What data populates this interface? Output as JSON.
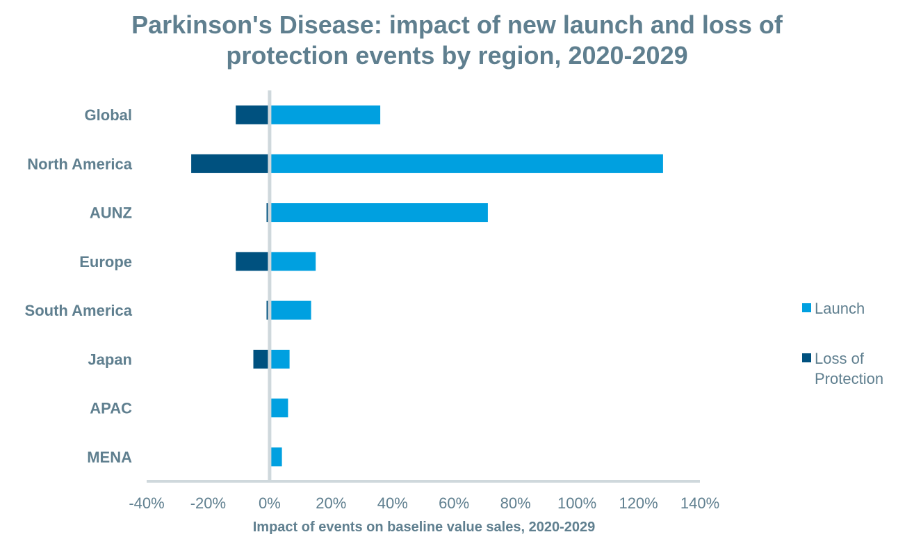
{
  "chart_data": {
    "type": "bar",
    "orientation": "horizontal",
    "stacked": true,
    "title_lines": [
      "Parkinson's Disease: impact of new launch and loss of",
      "protection events by region, 2020-2029"
    ],
    "categories": [
      "Global",
      "North America",
      "AUNZ",
      "Europe",
      "South America",
      "Japan",
      "APAC",
      "MENA"
    ],
    "series": [
      {
        "name": "Launch",
        "color": "#00a0e0",
        "values": [
          36,
          128,
          71,
          15,
          13.5,
          6.5,
          6,
          4
        ]
      },
      {
        "name": "Loss of Protection",
        "color": "#00517f",
        "values": [
          -11,
          -25.5,
          -1,
          -11,
          -1,
          -5.3,
          0,
          -0.5
        ]
      }
    ],
    "legend_lines": [
      [
        "Launch"
      ],
      [
        "Loss of",
        "Protection"
      ]
    ],
    "xlabel": "Impact of events on baseline value sales, 2020-2029",
    "xticks": [
      "-40%",
      "-20%",
      "0%",
      "20%",
      "40%",
      "60%",
      "80%",
      "100%",
      "120%",
      "140%"
    ],
    "xlim": [
      -40,
      140
    ],
    "legend_position": "right",
    "grid": false
  }
}
